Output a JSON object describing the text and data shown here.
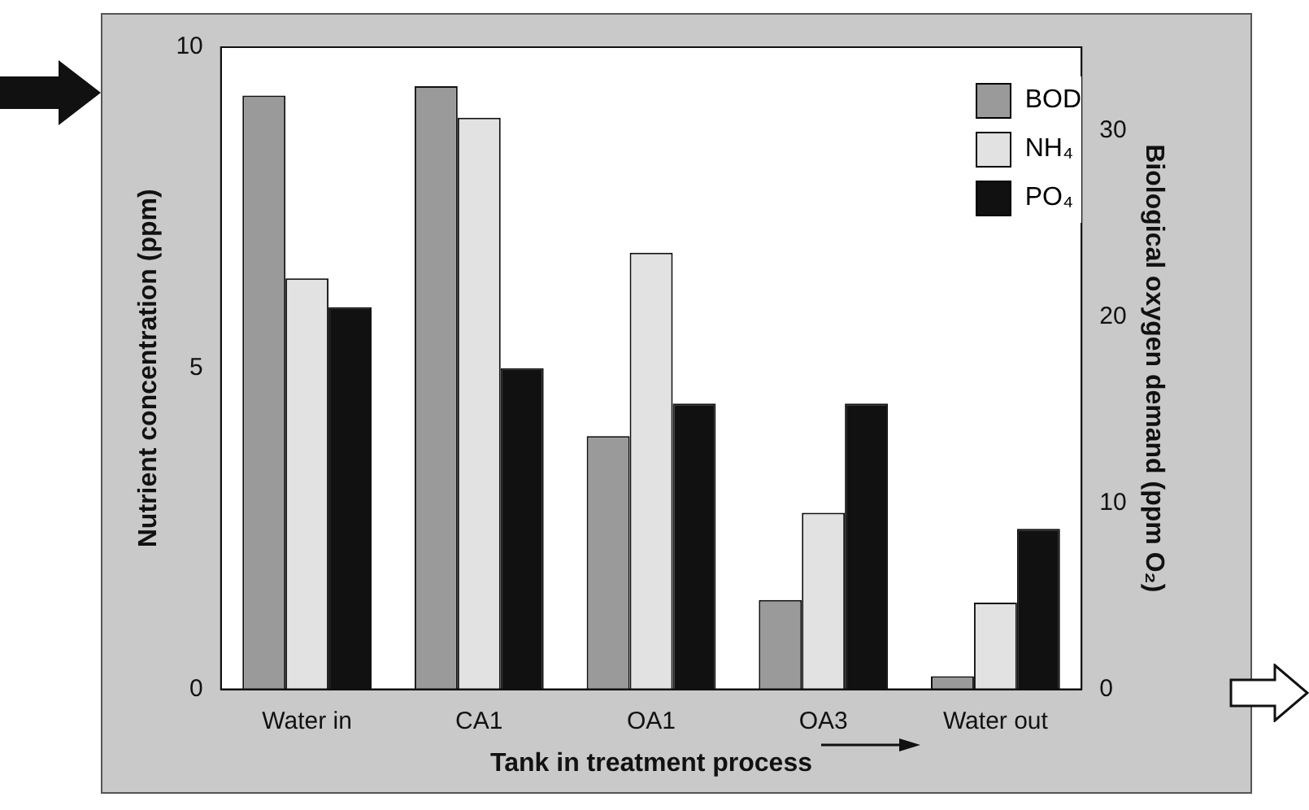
{
  "chart_data": {
    "type": "bar",
    "categories": [
      "Water in",
      "CA1",
      "OA1",
      "OA3",
      "Water out"
    ],
    "series": [
      {
        "name": "BOD",
        "color": "#9a9a9a",
        "axis": "y2",
        "values": [
          31.9,
          32.4,
          13.6,
          4.8,
          0.7
        ]
      },
      {
        "name": "NH₄",
        "color": "#e2e2e2",
        "values": [
          6.4,
          8.9,
          6.8,
          2.75,
          1.35
        ]
      },
      {
        "name": "PO₄",
        "color": "#111111",
        "values": [
          5.95,
          5.0,
          4.45,
          4.45,
          2.5
        ]
      }
    ],
    "xlabel": "Tank in treatment process",
    "ylabel": "Nutrient concentration (ppm)",
    "y2label": "Biological oxygen demand (ppm O₂)",
    "ylim": [
      0,
      10
    ],
    "yticks": [
      0,
      5,
      10
    ],
    "y2lim": [
      0,
      34.5
    ],
    "y2ticks": [
      0,
      10,
      20,
      30
    ],
    "grid": false,
    "legend": "top right"
  }
}
